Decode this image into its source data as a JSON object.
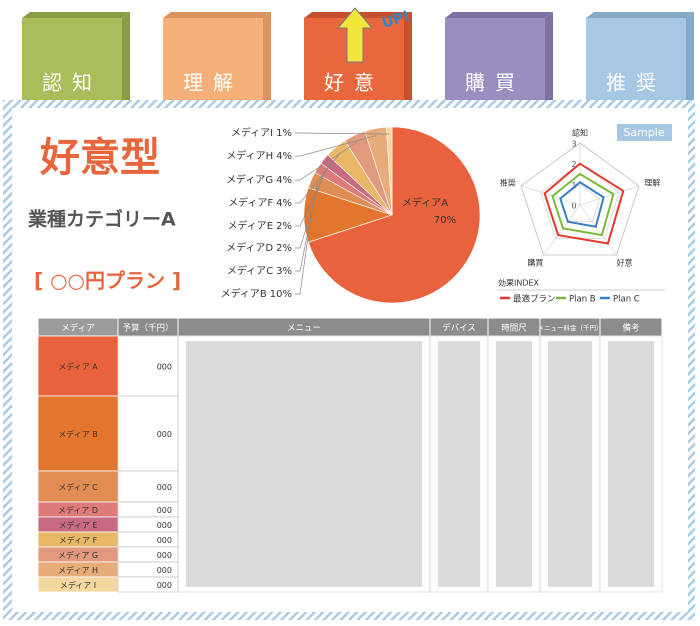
{
  "tabs": [
    "認知",
    "理解",
    "好意",
    "購買",
    "推奨"
  ],
  "up_label": "UP!",
  "sample_label": "Sample",
  "title": "好意型",
  "subtitle": "業種カテゴリーA",
  "plan": "[ ○○円プラン ]",
  "chart_data": [
    {
      "type": "pie",
      "categories": [
        "メディアA",
        "メディアB",
        "メディアC",
        "メディアD",
        "メディアE",
        "メディアF",
        "メディアG",
        "メディアH",
        "メディアI"
      ],
      "values": [
        70,
        10,
        3,
        2,
        2,
        4,
        4,
        4,
        1
      ],
      "value_labels": [
        "70%",
        "10%",
        "3%",
        "2%",
        "2%",
        "4%",
        "4%",
        "4%",
        "1%"
      ],
      "colors": [
        "#e8633d",
        "#e2762f",
        "#e08c52",
        "#de7a78",
        "#c96b80",
        "#e9b866",
        "#e29a7f",
        "#e8ab7a",
        "#f5d8a0"
      ]
    },
    {
      "type": "radar",
      "categories": [
        "認知",
        "理解",
        "好意",
        "購買",
        "推奨"
      ],
      "rlim": [
        0,
        3
      ],
      "rticks": [
        0,
        1,
        2,
        3
      ],
      "legend_title": "効果INDEX",
      "series": [
        {
          "name": "最適プラン",
          "color": "#e23a2e",
          "values": [
            2.0,
            2.2,
            2.3,
            1.8,
            1.8
          ]
        },
        {
          "name": "Plan B",
          "color": "#7cba3c",
          "values": [
            1.5,
            1.7,
            1.8,
            1.4,
            1.4
          ]
        },
        {
          "name": "Plan C",
          "color": "#3a7fc0",
          "values": [
            1.1,
            1.2,
            1.3,
            1.0,
            1.0
          ]
        }
      ]
    }
  ],
  "table": {
    "headers": [
      "メディア",
      "予算（千円）",
      "メニュー",
      "デバイス",
      "時間尺",
      "メニュー料金（千円）",
      "備考"
    ],
    "rows": [
      [
        "メディア A",
        "000"
      ],
      [
        "メディア B",
        "000"
      ],
      [
        "メディア C",
        "000"
      ],
      [
        "メディア D",
        "000"
      ],
      [
        "メディア E",
        "000"
      ],
      [
        "メディア F",
        "000"
      ],
      [
        "メディア G",
        "000"
      ],
      [
        "メディア H",
        "000"
      ],
      [
        "メディア I",
        "000"
      ]
    ]
  }
}
